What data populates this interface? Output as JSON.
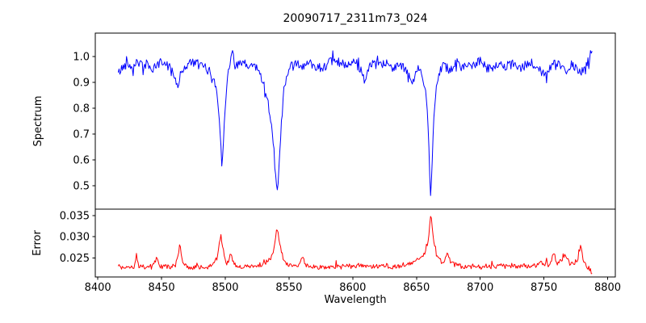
{
  "chart_data": {
    "type": "line",
    "title": "20090717_2311m73_024",
    "xlabel": "Wavelength",
    "xlim": [
      8398,
      8806
    ],
    "xticks": [
      8400,
      8450,
      8500,
      8550,
      8600,
      8650,
      8700,
      8750,
      8800
    ],
    "xtick_labels": [
      "8400",
      "8450",
      "8500",
      "8550",
      "8600",
      "8650",
      "8700",
      "8750",
      "8800"
    ],
    "grid": false,
    "legend": "none",
    "frame_color": "#000000",
    "panels": [
      {
        "name": "spectrum",
        "ylabel": "Spectrum",
        "ylim": [
          0.409,
          1.091
        ],
        "yticks": [
          0.5,
          0.6,
          0.7,
          0.8,
          0.9,
          1.0
        ],
        "ytick_labels": [
          "0.5",
          "0.6",
          "0.7",
          "0.8",
          "0.9",
          "1.0"
        ],
        "color": "#0000ff",
        "x_start": 8416,
        "x_end": 8788,
        "x_step": 0.65,
        "noise_amplitude": 0.018,
        "anchors": [
          [
            8416,
            0.935
          ],
          [
            8419,
            0.955
          ],
          [
            8423,
            0.975
          ],
          [
            8427,
            0.96
          ],
          [
            8431,
            0.985
          ],
          [
            8435,
            0.96
          ],
          [
            8439,
            0.975
          ],
          [
            8443,
            0.945
          ],
          [
            8447,
            0.97
          ],
          [
            8451,
            0.98
          ],
          [
            8455,
            0.965
          ],
          [
            8459,
            0.945
          ],
          [
            8463,
            0.88
          ],
          [
            8465,
            0.935
          ],
          [
            8469,
            0.965
          ],
          [
            8473,
            0.98
          ],
          [
            8477,
            0.97
          ],
          [
            8481,
            0.965
          ],
          [
            8485,
            0.955
          ],
          [
            8489,
            0.935
          ],
          [
            8493,
            0.88
          ],
          [
            8495,
            0.78
          ],
          [
            8496.5,
            0.655
          ],
          [
            8497.5,
            0.59
          ],
          [
            8498.5,
            0.68
          ],
          [
            8500,
            0.82
          ],
          [
            8501.5,
            0.915
          ],
          [
            8503.5,
            0.955
          ],
          [
            8505.5,
            1.05
          ],
          [
            8507,
            0.97
          ],
          [
            8510,
            0.965
          ],
          [
            8514,
            0.975
          ],
          [
            8518,
            0.96
          ],
          [
            8522,
            0.97
          ],
          [
            8526,
            0.945
          ],
          [
            8529,
            0.915
          ],
          [
            8532,
            0.86
          ],
          [
            8535,
            0.78
          ],
          [
            8537.5,
            0.68
          ],
          [
            8539.5,
            0.56
          ],
          [
            8541,
            0.452
          ],
          [
            8542.5,
            0.6
          ],
          [
            8544,
            0.74
          ],
          [
            8546,
            0.87
          ],
          [
            8548.5,
            0.935
          ],
          [
            8552,
            0.96
          ],
          [
            8556,
            0.975
          ],
          [
            8561,
            0.96
          ],
          [
            8566,
            0.975
          ],
          [
            8571,
            0.965
          ],
          [
            8576,
            0.955
          ],
          [
            8581,
            0.975
          ],
          [
            8586,
            0.985
          ],
          [
            8591,
            0.97
          ],
          [
            8596,
            0.96
          ],
          [
            8601,
            0.975
          ],
          [
            8606,
            0.955
          ],
          [
            8610,
            0.9
          ],
          [
            8612,
            0.955
          ],
          [
            8616,
            0.97
          ],
          [
            8621,
            0.96
          ],
          [
            8626,
            0.975
          ],
          [
            8631,
            0.96
          ],
          [
            8636,
            0.97
          ],
          [
            8640,
            0.955
          ],
          [
            8644,
            0.925
          ],
          [
            8647,
            0.89
          ],
          [
            8649.5,
            0.945
          ],
          [
            8652,
            0.955
          ],
          [
            8655,
            0.925
          ],
          [
            8657.5,
            0.86
          ],
          [
            8659.5,
            0.7
          ],
          [
            8661,
            0.443
          ],
          [
            8662.5,
            0.63
          ],
          [
            8664,
            0.8
          ],
          [
            8666,
            0.91
          ],
          [
            8668.5,
            0.95
          ],
          [
            8672,
            0.965
          ],
          [
            8676,
            0.95
          ],
          [
            8680,
            0.97
          ],
          [
            8685,
            0.96
          ],
          [
            8690,
            0.975
          ],
          [
            8695,
            0.965
          ],
          [
            8700,
            0.985
          ],
          [
            8705,
            0.965
          ],
          [
            8710,
            0.95
          ],
          [
            8715,
            0.97
          ],
          [
            8720,
            0.96
          ],
          [
            8725,
            0.975
          ],
          [
            8730,
            0.95
          ],
          [
            8735,
            0.965
          ],
          [
            8740,
            0.975
          ],
          [
            8744,
            0.955
          ],
          [
            8748,
            0.945
          ],
          [
            8752,
            0.925
          ],
          [
            8755,
            0.96
          ],
          [
            8759,
            0.975
          ],
          [
            8763,
            0.96
          ],
          [
            8767,
            0.945
          ],
          [
            8771,
            0.97
          ],
          [
            8775,
            0.955
          ],
          [
            8779,
            0.93
          ],
          [
            8782,
            0.965
          ],
          [
            8785,
            0.985
          ],
          [
            8788,
            1.03
          ]
        ]
      },
      {
        "name": "error",
        "ylabel": "Error",
        "ylim": [
          0.0205,
          0.0365
        ],
        "yticks": [
          0.025,
          0.03,
          0.035
        ],
        "ytick_labels": [
          "0.025",
          "0.030",
          "0.035"
        ],
        "color": "#ff0000",
        "x_start": 8416,
        "x_end": 8788,
        "x_step": 0.65,
        "noise_amplitude": 0.00055,
        "anchors": [
          [
            8416,
            0.0232
          ],
          [
            8420,
            0.0227
          ],
          [
            8424,
            0.0229
          ],
          [
            8428,
            0.0226
          ],
          [
            8430.5,
            0.0259
          ],
          [
            8432,
            0.0228
          ],
          [
            8436,
            0.023
          ],
          [
            8440,
            0.0226
          ],
          [
            8443,
            0.0229
          ],
          [
            8446.5,
            0.025
          ],
          [
            8449,
            0.0228
          ],
          [
            8453,
            0.0231
          ],
          [
            8457,
            0.0227
          ],
          [
            8461,
            0.0233
          ],
          [
            8464.5,
            0.0281
          ],
          [
            8467,
            0.0233
          ],
          [
            8471,
            0.0229
          ],
          [
            8476,
            0.0227
          ],
          [
            8481,
            0.0229
          ],
          [
            8486,
            0.0228
          ],
          [
            8490,
            0.0234
          ],
          [
            8493.5,
            0.0247
          ],
          [
            8496.5,
            0.0303
          ],
          [
            8499,
            0.0258
          ],
          [
            8501.5,
            0.0235
          ],
          [
            8504.5,
            0.0262
          ],
          [
            8506.5,
            0.0236
          ],
          [
            8511,
            0.023
          ],
          [
            8516,
            0.0228
          ],
          [
            8521,
            0.023
          ],
          [
            8526,
            0.0232
          ],
          [
            8531,
            0.0238
          ],
          [
            8535,
            0.0246
          ],
          [
            8538,
            0.0268
          ],
          [
            8540.5,
            0.0326
          ],
          [
            8543,
            0.0278
          ],
          [
            8545.5,
            0.0243
          ],
          [
            8549,
            0.0233
          ],
          [
            8553,
            0.0229
          ],
          [
            8557,
            0.0231
          ],
          [
            8560.5,
            0.0252
          ],
          [
            8563,
            0.0233
          ],
          [
            8567,
            0.0229
          ],
          [
            8572,
            0.0227
          ],
          [
            8577,
            0.0229
          ],
          [
            8582,
            0.0227
          ],
          [
            8587,
            0.023
          ],
          [
            8592,
            0.0227
          ],
          [
            8597,
            0.0231
          ],
          [
            8602,
            0.0228
          ],
          [
            8607,
            0.0233
          ],
          [
            8611,
            0.0229
          ],
          [
            8616,
            0.0231
          ],
          [
            8621,
            0.0228
          ],
          [
            8626,
            0.0232
          ],
          [
            8631,
            0.0229
          ],
          [
            8636,
            0.0231
          ],
          [
            8640,
            0.0234
          ],
          [
            8645,
            0.0238
          ],
          [
            8650,
            0.0243
          ],
          [
            8654,
            0.0251
          ],
          [
            8657,
            0.0262
          ],
          [
            8659.5,
            0.03
          ],
          [
            8661.3,
            0.0358
          ],
          [
            8663,
            0.0305
          ],
          [
            8665,
            0.0261
          ],
          [
            8667.5,
            0.0246
          ],
          [
            8671,
            0.0239
          ],
          [
            8674.5,
            0.026
          ],
          [
            8676.5,
            0.024
          ],
          [
            8680,
            0.0234
          ],
          [
            8685,
            0.023
          ],
          [
            8690,
            0.0228
          ],
          [
            8695,
            0.0231
          ],
          [
            8700,
            0.0228
          ],
          [
            8705,
            0.0231
          ],
          [
            8710,
            0.0229
          ],
          [
            8715,
            0.0232
          ],
          [
            8720,
            0.0229
          ],
          [
            8725,
            0.0232
          ],
          [
            8730,
            0.023
          ],
          [
            8735,
            0.0232
          ],
          [
            8740,
            0.023
          ],
          [
            8745,
            0.0234
          ],
          [
            8749,
            0.0239
          ],
          [
            8752,
            0.0233
          ],
          [
            8755,
            0.0236
          ],
          [
            8757.7,
            0.0262
          ],
          [
            8760,
            0.0237
          ],
          [
            8763.5,
            0.0243
          ],
          [
            8767,
            0.0259
          ],
          [
            8770,
            0.0238
          ],
          [
            8773,
            0.0237
          ],
          [
            8776,
            0.024
          ],
          [
            8778.8,
            0.0281
          ],
          [
            8781,
            0.0238
          ],
          [
            8784,
            0.023
          ],
          [
            8786.5,
            0.0221
          ],
          [
            8788,
            0.0213
          ]
        ]
      }
    ],
    "absorption_lines": [
      {
        "center": 8498,
        "min_flux": 0.59,
        "error_peak": 0.03
      },
      {
        "center": 8542,
        "min_flux": 0.45,
        "error_peak": 0.033
      },
      {
        "center": 8662,
        "min_flux": 0.44,
        "error_peak": 0.036
      }
    ]
  }
}
